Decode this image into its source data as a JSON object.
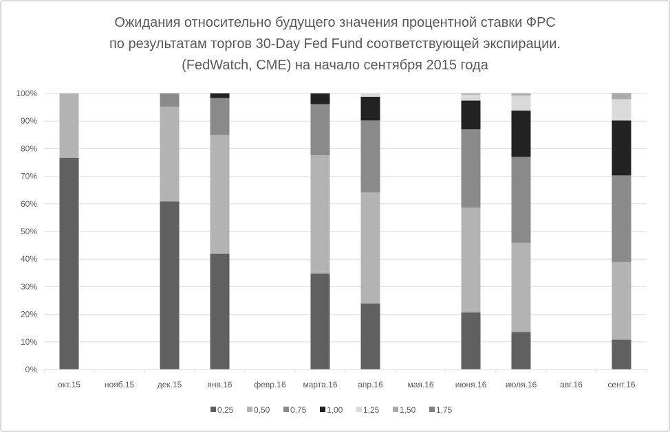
{
  "chart_data": {
    "type": "bar",
    "stacked": true,
    "title": [
      "Ожидания относительно будущего значения процентной ставки ФРС",
      "по результатам торгов 30-Day Fed Fund соответствующей экспирации.",
      "(FedWatch, CME) на начало сентября 2015 года"
    ],
    "xlabel": "",
    "ylabel": "",
    "ylim": [
      0,
      100
    ],
    "yticks": [
      "0%",
      "10%",
      "20%",
      "30%",
      "40%",
      "50%",
      "60%",
      "70%",
      "80%",
      "90%",
      "100%"
    ],
    "grid": true,
    "legend_position": "bottom",
    "categories": [
      "окт.15",
      "нояб.15",
      "дек.15",
      "янв.16",
      "февр.16",
      "марта.16",
      "апр.16",
      "мая.16",
      "июня.16",
      "июля.16",
      "авг.16",
      "сент.16"
    ],
    "series": [
      {
        "name": "0,25",
        "color": "#606060",
        "values": [
          76.7,
          0,
          60.9,
          41.9,
          0,
          34.7,
          23.9,
          0,
          20.7,
          13.6,
          0,
          10.8
        ]
      },
      {
        "name": "0,50",
        "color": "#b3b3b3",
        "values": [
          23.3,
          0,
          34.2,
          43.0,
          0,
          42.9,
          40.2,
          0,
          37.9,
          32.3,
          0,
          28.1
        ]
      },
      {
        "name": "0,75",
        "color": "#8a8a8a",
        "values": [
          0,
          0,
          4.9,
          13.4,
          0,
          18.5,
          26.1,
          0,
          28.4,
          31.1,
          0,
          31.4
        ]
      },
      {
        "name": "1,00",
        "color": "#222222",
        "values": [
          0,
          0,
          0,
          1.7,
          0,
          3.9,
          8.6,
          0,
          10.4,
          16.8,
          0,
          19.9
        ]
      },
      {
        "name": "1,25",
        "color": "#dadada",
        "values": [
          0,
          0,
          0,
          0,
          0,
          0,
          1.2,
          0,
          2.2,
          5.4,
          0,
          7.7
        ]
      },
      {
        "name": "1,50",
        "color": "#aaaaaa",
        "values": [
          0,
          0,
          0,
          0,
          0,
          0,
          0,
          0,
          0.4,
          0.8,
          0,
          1.9
        ]
      },
      {
        "name": "1,75",
        "color": "#808080",
        "values": [
          0,
          0,
          0,
          0,
          0,
          0,
          0,
          0,
          0,
          0,
          0,
          0.2
        ]
      }
    ]
  }
}
